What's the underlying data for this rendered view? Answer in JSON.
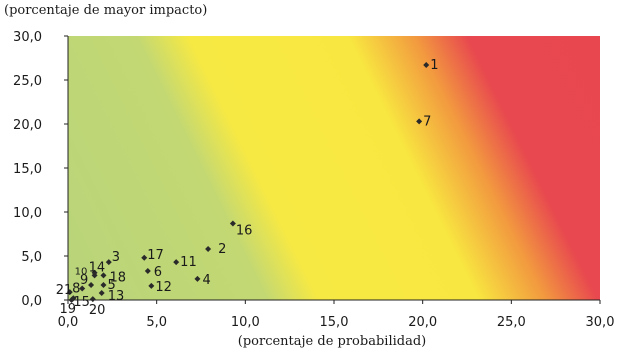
{
  "chart_data": {
    "type": "scatter",
    "ylabel": "(porcentaje de mayor impacto)",
    "xlabel": "(porcentaje de probabilidad)",
    "xlim": [
      0,
      30
    ],
    "ylim": [
      0,
      30
    ],
    "xticks": [
      "0,0",
      "5,0",
      "10,0",
      "15,0",
      "20,0",
      "25,0",
      "30,0"
    ],
    "yticks": [
      "0,0",
      "5,0",
      "10,0",
      "15,0",
      "20,0",
      "25,0",
      "30,0"
    ],
    "background": "risk heat-map gradient green-yellow-red along x+y",
    "colors": {
      "green": "#bcd77b",
      "yellow": "#f8ea41",
      "red": "#e8484f",
      "marker": "#2a2a2a"
    },
    "points": [
      {
        "label": "1",
        "x": 20.2,
        "y": 26.7
      },
      {
        "label": "7",
        "x": 19.8,
        "y": 20.3
      },
      {
        "label": "16",
        "x": 9.3,
        "y": 8.7
      },
      {
        "label": "2",
        "x": 7.9,
        "y": 5.8
      },
      {
        "label": "11",
        "x": 6.1,
        "y": 4.3
      },
      {
        "label": "4",
        "x": 7.3,
        "y": 2.4
      },
      {
        "label": "17",
        "x": 4.3,
        "y": 4.8
      },
      {
        "label": "6",
        "x": 4.5,
        "y": 3.3
      },
      {
        "label": "12",
        "x": 4.7,
        "y": 1.6
      },
      {
        "label": "3",
        "x": 2.3,
        "y": 4.3
      },
      {
        "label": "14",
        "x": 1.5,
        "y": 3.1
      },
      {
        "label": "10",
        "x": 1.5,
        "y": 2.8
      },
      {
        "label": "18",
        "x": 2.0,
        "y": 2.8
      },
      {
        "label": "9",
        "x": 1.3,
        "y": 1.7
      },
      {
        "label": "5",
        "x": 2.0,
        "y": 1.7
      },
      {
        "label": "8",
        "x": 0.8,
        "y": 1.3
      },
      {
        "label": "13",
        "x": 1.9,
        "y": 0.8
      },
      {
        "label": "21",
        "x": 0.1,
        "y": 0.9
      },
      {
        "label": "15",
        "x": 0.3,
        "y": 0.2
      },
      {
        "label": "20",
        "x": 1.4,
        "y": 0.1
      },
      {
        "label": "19",
        "x": 0.2,
        "y": 0.0
      }
    ]
  }
}
